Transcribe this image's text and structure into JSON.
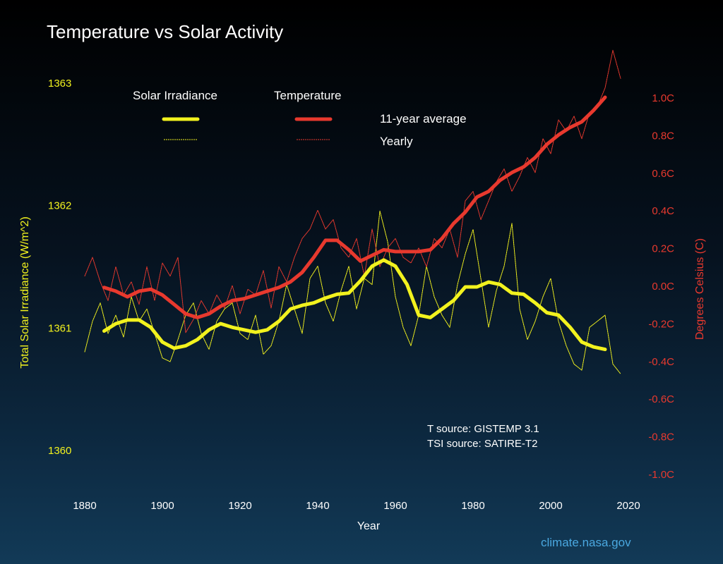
{
  "chart_data": {
    "type": "line",
    "title": "Temperature vs Solar Activity",
    "xlabel": "Year",
    "ylabel_left": "Total Solar Irradiance (W/m^2)",
    "ylabel_right": "Degrees Celsius (C)",
    "xlim": [
      1880,
      2020
    ],
    "ylim_left": [
      1360,
      1363
    ],
    "ylim_right": [
      -1.0,
      1.0
    ],
    "x_ticks": [
      "1880",
      "1900",
      "1920",
      "1940",
      "1960",
      "1980",
      "2000",
      "2020"
    ],
    "y_left_ticks": [
      "1360",
      "1361",
      "1362",
      "1363"
    ],
    "y_right_ticks": [
      "1.0C",
      "0.8C",
      "0.6C",
      "0.4C",
      "0.2C",
      "0.0C",
      "-0.2C",
      "-0.4C",
      "-0.6C",
      "-0.8C",
      "-1.0C"
    ],
    "legend": {
      "group_solar": "Solar Irradiance",
      "group_temp": "Temperature",
      "avg_label": "11-year average",
      "yearly_label": "Yearly"
    },
    "colors": {
      "solar": "#f2f21e",
      "temperature": "#e8392e",
      "right_axis": "#e8392e",
      "left_axis": "#f2f21e",
      "credit": "#4aa8e0"
    },
    "annotations": [
      "T source: GISTEMP 3.1",
      "TSI source: SATIRE-T2"
    ],
    "credit": "climate.nasa.gov",
    "series": [
      {
        "name": "Solar Irradiance 11-year average",
        "axis": "left",
        "style": "thick",
        "x": [
          1885,
          1888,
          1891,
          1894,
          1897,
          1900,
          1903,
          1906,
          1909,
          1912,
          1915,
          1918,
          1921,
          1924,
          1927,
          1930,
          1933,
          1936,
          1939,
          1942,
          1945,
          1948,
          1951,
          1954,
          1957,
          1960,
          1963,
          1966,
          1969,
          1972,
          1975,
          1978,
          1981,
          1984,
          1987,
          1990,
          1993,
          1996,
          1999,
          2002,
          2005,
          2008,
          2011,
          2014
        ],
        "y": [
          1360.97,
          1361.03,
          1361.06,
          1361.06,
          1361.0,
          1360.88,
          1360.83,
          1360.85,
          1360.9,
          1360.98,
          1361.03,
          1361.0,
          1360.98,
          1360.96,
          1360.98,
          1361.05,
          1361.15,
          1361.18,
          1361.2,
          1361.24,
          1361.27,
          1361.28,
          1361.38,
          1361.5,
          1361.55,
          1361.5,
          1361.35,
          1361.1,
          1361.08,
          1361.15,
          1361.22,
          1361.33,
          1361.33,
          1361.37,
          1361.35,
          1361.28,
          1361.27,
          1361.2,
          1361.12,
          1361.1,
          1361.0,
          1360.88,
          1360.84,
          1360.82
        ]
      },
      {
        "name": "Solar Irradiance yearly",
        "axis": "left",
        "style": "dotted",
        "x": [
          1880,
          1882,
          1884,
          1886,
          1888,
          1890,
          1892,
          1894,
          1896,
          1898,
          1900,
          1902,
          1904,
          1906,
          1908,
          1910,
          1912,
          1914,
          1916,
          1918,
          1920,
          1922,
          1924,
          1926,
          1928,
          1930,
          1932,
          1934,
          1936,
          1938,
          1940,
          1942,
          1944,
          1946,
          1948,
          1950,
          1952,
          1954,
          1956,
          1958,
          1960,
          1962,
          1964,
          1966,
          1968,
          1970,
          1972,
          1974,
          1976,
          1978,
          1980,
          1982,
          1984,
          1986,
          1988,
          1990,
          1992,
          1994,
          1996,
          1998,
          2000,
          2002,
          2004,
          2006,
          2008,
          2010,
          2012,
          2014,
          2016,
          2018
        ],
        "y": [
          1360.8,
          1361.05,
          1361.2,
          1360.95,
          1361.1,
          1360.92,
          1361.25,
          1361.05,
          1361.15,
          1360.95,
          1360.75,
          1360.72,
          1360.9,
          1361.1,
          1361.2,
          1360.95,
          1360.82,
          1361.05,
          1361.15,
          1361.2,
          1360.95,
          1360.9,
          1361.1,
          1360.78,
          1360.85,
          1361.05,
          1361.35,
          1361.15,
          1360.95,
          1361.4,
          1361.5,
          1361.2,
          1361.05,
          1361.3,
          1361.5,
          1361.15,
          1361.4,
          1361.35,
          1361.95,
          1361.7,
          1361.25,
          1361.0,
          1360.85,
          1361.1,
          1361.5,
          1361.25,
          1361.1,
          1361.0,
          1361.35,
          1361.6,
          1361.8,
          1361.4,
          1361.0,
          1361.3,
          1361.5,
          1361.85,
          1361.15,
          1360.9,
          1361.05,
          1361.25,
          1361.4,
          1361.05,
          1360.85,
          1360.7,
          1360.65,
          1361.0,
          1361.05,
          1361.1,
          1360.7,
          1360.62
        ]
      },
      {
        "name": "Temperature 11-year average",
        "axis": "right",
        "style": "thick",
        "x": [
          1885,
          1888,
          1891,
          1894,
          1897,
          1900,
          1903,
          1906,
          1909,
          1912,
          1915,
          1918,
          1921,
          1924,
          1927,
          1930,
          1933,
          1936,
          1939,
          1942,
          1945,
          1948,
          1951,
          1954,
          1957,
          1960,
          1963,
          1966,
          1969,
          1972,
          1975,
          1978,
          1981,
          1984,
          1987,
          1990,
          1993,
          1996,
          1999,
          2002,
          2005,
          2008,
          2011,
          2014
        ],
        "y": [
          -0.01,
          -0.03,
          -0.06,
          -0.03,
          -0.02,
          -0.05,
          -0.1,
          -0.15,
          -0.17,
          -0.15,
          -0.11,
          -0.08,
          -0.07,
          -0.05,
          -0.03,
          -0.01,
          0.02,
          0.07,
          0.15,
          0.24,
          0.24,
          0.19,
          0.13,
          0.16,
          0.19,
          0.18,
          0.18,
          0.18,
          0.19,
          0.25,
          0.33,
          0.39,
          0.47,
          0.5,
          0.56,
          0.6,
          0.63,
          0.68,
          0.75,
          0.8,
          0.84,
          0.87,
          0.93,
          1.0
        ]
      },
      {
        "name": "Temperature yearly",
        "axis": "right",
        "style": "dotted",
        "x": [
          1880,
          1882,
          1884,
          1886,
          1888,
          1890,
          1892,
          1894,
          1896,
          1898,
          1900,
          1902,
          1904,
          1906,
          1908,
          1910,
          1912,
          1914,
          1916,
          1918,
          1920,
          1922,
          1924,
          1926,
          1928,
          1930,
          1932,
          1934,
          1936,
          1938,
          1940,
          1942,
          1944,
          1946,
          1948,
          1950,
          1952,
          1954,
          1956,
          1958,
          1960,
          1962,
          1964,
          1966,
          1968,
          1970,
          1972,
          1974,
          1976,
          1978,
          1980,
          1982,
          1984,
          1986,
          1988,
          1990,
          1992,
          1994,
          1996,
          1998,
          2000,
          2002,
          2004,
          2006,
          2008,
          2010,
          2012,
          2014,
          2016,
          2018
        ],
        "y": [
          0.05,
          0.15,
          0.02,
          -0.08,
          0.1,
          -0.05,
          0.02,
          -0.1,
          0.1,
          -0.08,
          0.12,
          0.05,
          0.15,
          -0.25,
          -0.18,
          -0.08,
          -0.15,
          -0.05,
          -0.12,
          0.0,
          -0.15,
          -0.02,
          -0.05,
          0.08,
          -0.12,
          0.1,
          0.02,
          0.15,
          0.25,
          0.3,
          0.4,
          0.3,
          0.35,
          0.2,
          0.15,
          0.25,
          0.05,
          0.3,
          0.1,
          0.2,
          0.25,
          0.15,
          0.12,
          0.2,
          0.1,
          0.25,
          0.2,
          0.3,
          0.15,
          0.45,
          0.5,
          0.35,
          0.45,
          0.55,
          0.62,
          0.5,
          0.58,
          0.68,
          0.6,
          0.78,
          0.7,
          0.88,
          0.82,
          0.9,
          0.78,
          0.92,
          0.95,
          1.05,
          1.25,
          1.1
        ]
      }
    ]
  }
}
